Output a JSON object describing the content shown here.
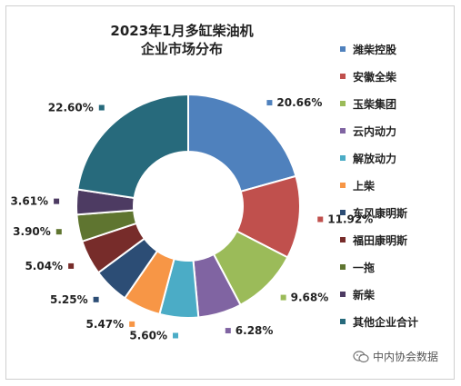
{
  "chart_data": {
    "type": "pie",
    "title": "2023年1月多缸柴油机",
    "subtitle": "企业市场分布",
    "donut": true,
    "legend_position": "right",
    "categories": [
      "潍柴控股",
      "安徽全柴",
      "玉柴集团",
      "云内动力",
      "解放动力",
      "上柴",
      "东风康明斯",
      "福田康明斯",
      "一拖",
      "新柴",
      "其他企业合计"
    ],
    "values": [
      20.66,
      11.92,
      9.68,
      6.28,
      5.6,
      5.47,
      5.25,
      5.04,
      3.9,
      3.61,
      22.6
    ],
    "labels": [
      "20.66%",
      "11.92%",
      "9.68%",
      "6.28%",
      "5.60%",
      "5.47%",
      "5.25%",
      "5.04%",
      "3.90%",
      "3.61%",
      "22.60%"
    ],
    "colors": [
      "#4F81BD",
      "#C0504D",
      "#9BBB59",
      "#8064A2",
      "#4BACC6",
      "#F79646",
      "#2C4D75",
      "#772C2A",
      "#5F7530",
      "#4D3B62",
      "#276A7C"
    ]
  },
  "watermark": {
    "icon": "wechat-icon",
    "text": "中内协会数据"
  }
}
